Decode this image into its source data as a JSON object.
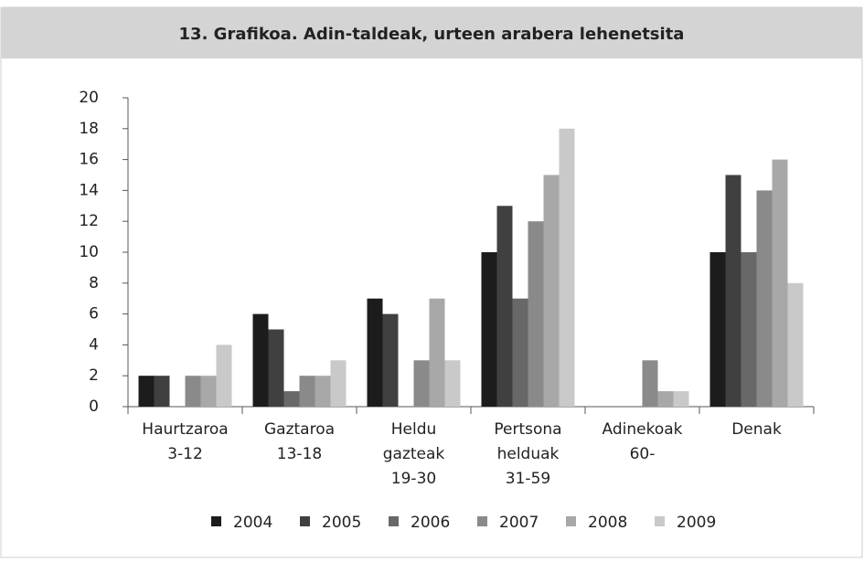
{
  "chart_data": {
    "type": "bar",
    "title": "13. Grafikoa. Adin-taldeak, urteen arabera lehenetsita",
    "categories": [
      [
        "Haurtzaroa",
        "3-12"
      ],
      [
        "Gaztaroa",
        "13-18"
      ],
      [
        "Heldu",
        "gazteak",
        "19-30"
      ],
      [
        "Pertsona",
        "helduak",
        "31-59"
      ],
      [
        "Adinekoak",
        "60-"
      ],
      [
        "Denak"
      ]
    ],
    "series": [
      {
        "name": "2004",
        "color": "#1c1c1c",
        "values": [
          2,
          6,
          7,
          10,
          0,
          10
        ]
      },
      {
        "name": "2005",
        "color": "#404040",
        "values": [
          2,
          5,
          6,
          13,
          0,
          15
        ]
      },
      {
        "name": "2006",
        "color": "#686868",
        "values": [
          0,
          1,
          0,
          7,
          0,
          10
        ]
      },
      {
        "name": "2007",
        "color": "#8a8a8a",
        "values": [
          2,
          2,
          3,
          12,
          3,
          14
        ]
      },
      {
        "name": "2008",
        "color": "#a8a8a8",
        "values": [
          2,
          2,
          7,
          15,
          1,
          16
        ]
      },
      {
        "name": "2009",
        "color": "#c9c9c9",
        "values": [
          4,
          3,
          3,
          18,
          1,
          8
        ]
      }
    ],
    "ylim": [
      0,
      20
    ],
    "yticks": [
      0,
      2,
      4,
      6,
      8,
      10,
      12,
      14,
      16,
      18,
      20
    ],
    "grid": false
  }
}
